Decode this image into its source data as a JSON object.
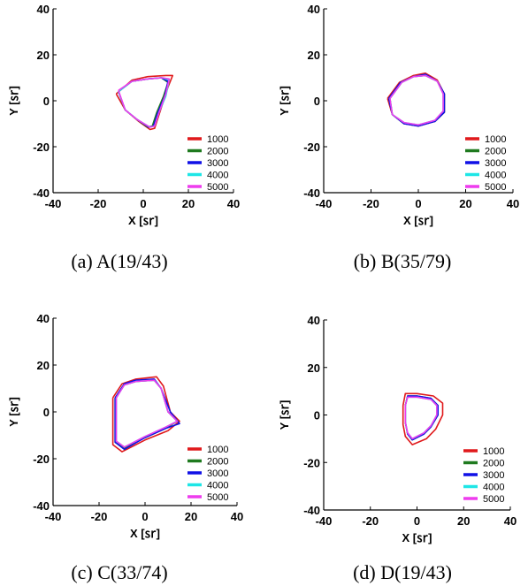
{
  "legend_entries": [
    "1000",
    "2000",
    "3000",
    "4000",
    "5000"
  ],
  "series_colors": [
    "#e0191b",
    "#1f7a1f",
    "#1010e6",
    "#1ee6e6",
    "#ee3cee"
  ],
  "chart_data": [
    {
      "type": "line",
      "caption": "(a)  A(19/43)",
      "xlabel": "X [㏛]",
      "ylabel": "Y [㏛]",
      "xlim": [
        -40,
        40
      ],
      "ylim": [
        -40,
        40
      ],
      "xticks": [
        -40,
        -20,
        0,
        20,
        40
      ],
      "yticks": [
        -40,
        -20,
        0,
        20,
        40
      ],
      "grid": false,
      "legend": "bottom-right",
      "series": [
        {
          "name": "1000",
          "x": [
            -12,
            -5,
            2,
            10,
            13,
            11,
            8,
            5,
            3,
            -2,
            -8,
            -12
          ],
          "y": [
            3,
            9,
            10.5,
            11,
            11,
            6,
            -3,
            -12,
            -12.5,
            -9,
            -4,
            3
          ]
        },
        {
          "name": "2000",
          "x": [
            -11,
            -5,
            2,
            8,
            11,
            9,
            6,
            4,
            2,
            -3,
            -8,
            -11
          ],
          "y": [
            4,
            8.5,
            9.5,
            10,
            8,
            2,
            -5,
            -11,
            -11.5,
            -8,
            -4,
            4
          ]
        },
        {
          "name": "3000",
          "x": [
            -11,
            -5,
            2,
            8,
            11,
            9.5,
            6.5,
            4.5,
            2.5,
            -3,
            -8,
            -11
          ],
          "y": [
            4,
            8.5,
            9.5,
            10,
            8.5,
            2,
            -5,
            -11,
            -11.5,
            -8,
            -4,
            4
          ]
        },
        {
          "name": "4000",
          "x": [
            -11,
            -5,
            2,
            8.5,
            11.5,
            10,
            7,
            5,
            3,
            -3,
            -8,
            -11
          ],
          "y": [
            4,
            8.5,
            9.5,
            10,
            9,
            2,
            -5,
            -11,
            -11.5,
            -8,
            -4,
            4
          ]
        },
        {
          "name": "5000",
          "x": [
            -11,
            -5,
            2,
            8.5,
            11.5,
            10,
            7,
            5,
            3,
            -3,
            -8,
            -11
          ],
          "y": [
            4.5,
            8.5,
            9.5,
            10,
            9.5,
            3,
            -5,
            -11,
            -11.5,
            -8,
            -4,
            4.5
          ]
        }
      ]
    },
    {
      "type": "line",
      "caption": "(b)  B(35/79)",
      "xlabel": "X [㏛]",
      "ylabel": "Y [㏛]",
      "xlim": [
        -40,
        40
      ],
      "ylim": [
        -40,
        40
      ],
      "xticks": [
        -40,
        -20,
        0,
        20,
        40
      ],
      "yticks": [
        -40,
        -20,
        0,
        20,
        40
      ],
      "grid": false,
      "legend": "bottom-right",
      "series": [
        {
          "name": "1000",
          "x": [
            -13,
            -8,
            -2,
            3,
            8,
            11,
            11,
            7,
            0,
            -6,
            -11,
            -13
          ],
          "y": [
            1,
            8,
            11,
            12,
            9,
            3,
            -5,
            -9,
            -11,
            -10,
            -6,
            1
          ]
        },
        {
          "name": "2000",
          "x": [
            -12,
            -7,
            -2,
            3,
            8,
            11,
            11,
            7,
            0,
            -6,
            -11,
            -12
          ],
          "y": [
            1,
            8,
            10.5,
            11,
            8.5,
            3,
            -5,
            -9,
            -10.5,
            -10,
            -6,
            1
          ]
        },
        {
          "name": "3000",
          "x": [
            -12.5,
            -7.5,
            -2,
            3,
            8,
            11,
            11,
            7,
            0,
            -6,
            -11,
            -12.5
          ],
          "y": [
            1,
            8,
            10.5,
            11.5,
            8.5,
            3,
            -5,
            -9,
            -11,
            -10,
            -6,
            1
          ]
        },
        {
          "name": "4000",
          "x": [
            -12,
            -7,
            -2,
            3,
            8,
            10.5,
            10.5,
            7,
            0,
            -6,
            -11,
            -12
          ],
          "y": [
            1,
            8,
            10.5,
            11,
            8.5,
            3,
            -4.5,
            -8.5,
            -10.5,
            -9.5,
            -6,
            1
          ]
        },
        {
          "name": "5000",
          "x": [
            -12,
            -7,
            -2,
            3,
            8,
            10.5,
            10.5,
            7,
            0,
            -6,
            -11,
            -12
          ],
          "y": [
            1,
            8,
            10.5,
            11,
            8.5,
            3,
            -4.5,
            -8.5,
            -10.5,
            -9.5,
            -6,
            1
          ]
        }
      ]
    },
    {
      "type": "line",
      "caption": "(c)  C(33/74)",
      "xlabel": "X [㏛]",
      "ylabel": "Y [㏛]",
      "xlim": [
        -40,
        40
      ],
      "ylim": [
        -40,
        40
      ],
      "xticks": [
        -40,
        -20,
        0,
        20,
        40
      ],
      "yticks": [
        -40,
        -20,
        0,
        20,
        40
      ],
      "grid": false,
      "legend": "bottom-right",
      "series": [
        {
          "name": "1000",
          "x": [
            -14,
            -10,
            -4,
            5,
            8,
            11,
            15,
            10,
            0,
            -10,
            -14,
            -14
          ],
          "y": [
            6,
            12,
            14,
            15,
            11,
            0,
            -4,
            -8,
            -12,
            -17,
            -14,
            6
          ]
        },
        {
          "name": "2000",
          "x": [
            -13,
            -9,
            -4,
            4,
            7,
            10,
            14,
            9,
            0,
            -9,
            -13,
            -13
          ],
          "y": [
            6,
            11.5,
            13,
            13.5,
            10,
            0,
            -4,
            -7,
            -11,
            -15.5,
            -13,
            6
          ]
        },
        {
          "name": "3000",
          "x": [
            -13,
            -9,
            -4,
            4,
            7,
            11,
            15,
            9,
            0,
            -9,
            -13,
            -13
          ],
          "y": [
            6,
            12,
            13.5,
            14,
            10,
            0,
            -5,
            -7,
            -11,
            -16,
            -13,
            6
          ]
        },
        {
          "name": "4000",
          "x": [
            -12.5,
            -9,
            -4,
            4,
            7,
            10,
            14,
            9,
            0,
            -9,
            -12.5,
            -12.5
          ],
          "y": [
            6,
            11.5,
            13,
            13.5,
            10,
            0,
            -4,
            -6.5,
            -10.5,
            -15,
            -12.5,
            6
          ]
        },
        {
          "name": "5000",
          "x": [
            -12.5,
            -9,
            -4,
            4,
            7,
            10,
            14,
            9,
            0,
            -9,
            -12.5,
            -12.5
          ],
          "y": [
            6,
            11.5,
            13,
            13.5,
            10,
            0,
            -4,
            -6.5,
            -10.5,
            -15,
            -12.5,
            6
          ]
        }
      ]
    },
    {
      "type": "line",
      "caption": "(d)  D(19/43)",
      "xlabel": "X [㏛]",
      "ylabel": "Y [㏛]",
      "xlim": [
        -40,
        40
      ],
      "ylim": [
        -40,
        40
      ],
      "xticks": [
        -40,
        -20,
        0,
        20,
        40
      ],
      "yticks": [
        -40,
        -20,
        0,
        20,
        40
      ],
      "grid": false,
      "legend": "bottom-right",
      "series": [
        {
          "name": "1000",
          "x": [
            -6,
            -5,
            0,
            7,
            11,
            11,
            8,
            4,
            -2,
            -5,
            -6,
            -6
          ],
          "y": [
            4,
            9,
            9,
            8,
            5,
            0,
            -6,
            -10,
            -12.5,
            -9,
            -4,
            4
          ]
        },
        {
          "name": "2000",
          "x": [
            -5,
            -4,
            0,
            6,
            9,
            9,
            6,
            3,
            -2,
            -4,
            -5,
            -5
          ],
          "y": [
            4,
            8,
            8,
            7,
            4,
            0,
            -5,
            -8,
            -10.5,
            -8,
            -3,
            4
          ]
        },
        {
          "name": "3000",
          "x": [
            -5,
            -4,
            0,
            6,
            9,
            9,
            6,
            3,
            -2,
            -4,
            -5,
            -5
          ],
          "y": [
            4,
            8,
            8,
            7,
            4,
            0,
            -5,
            -8,
            -10.5,
            -8,
            -3,
            4
          ]
        },
        {
          "name": "4000",
          "x": [
            -5,
            -4,
            0,
            6,
            8.5,
            8.5,
            6,
            3,
            -2,
            -4,
            -5,
            -5
          ],
          "y": [
            4,
            7.5,
            7.5,
            6.5,
            4,
            0,
            -4.5,
            -7.5,
            -10,
            -7.5,
            -3,
            4
          ]
        },
        {
          "name": "5000",
          "x": [
            -5,
            -4,
            0,
            6,
            8.5,
            8.5,
            6,
            3,
            -2,
            -4,
            -5,
            -5
          ],
          "y": [
            4,
            7.5,
            7.5,
            6.5,
            4,
            0,
            -4.5,
            -7.5,
            -10,
            -7.5,
            -3,
            4
          ]
        }
      ]
    }
  ]
}
